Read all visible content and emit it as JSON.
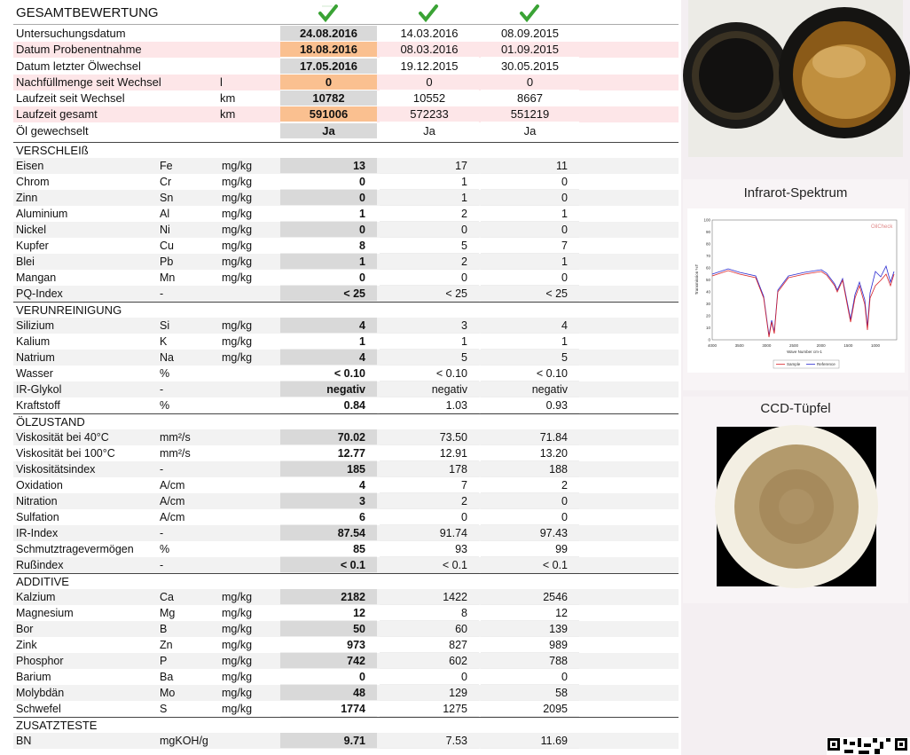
{
  "header": {
    "title": "GESAMTBEWERTUNG"
  },
  "general": {
    "rows": [
      {
        "label": "Untersuchungsdatum",
        "values": [
          "24.08.2016",
          "14.03.2016",
          "08.09.2015"
        ]
      },
      {
        "label": "Datum Probenentnahme",
        "values": [
          "18.08.2016",
          "08.03.2016",
          "01.09.2015"
        ]
      },
      {
        "label": "Datum letzter Ölwechsel",
        "values": [
          "17.05.2016",
          "19.12.2015",
          "30.05.2015"
        ]
      },
      {
        "label": "Nachfüllmenge seit Wechsel",
        "unit": "l",
        "values": [
          "0",
          "0",
          "0"
        ]
      },
      {
        "label": "Laufzeit seit Wechsel",
        "unit": "km",
        "values": [
          "10782",
          "10552",
          "8667"
        ]
      },
      {
        "label": "Laufzeit gesamt",
        "unit": "km",
        "values": [
          "591006",
          "572233",
          "551219"
        ]
      },
      {
        "label": "Öl gewechselt",
        "values": [
          "Ja",
          "Ja",
          "Ja"
        ]
      }
    ]
  },
  "sections": [
    {
      "title": "VERSCHLEIß",
      "rows": [
        {
          "label": "Eisen",
          "symbol": "Fe",
          "unit": "mg/kg",
          "values": [
            "13",
            "17",
            "11"
          ]
        },
        {
          "label": "Chrom",
          "symbol": "Cr",
          "unit": "mg/kg",
          "values": [
            "0",
            "1",
            "0"
          ]
        },
        {
          "label": "Zinn",
          "symbol": "Sn",
          "unit": "mg/kg",
          "values": [
            "0",
            "1",
            "0"
          ]
        },
        {
          "label": "Aluminium",
          "symbol": "Al",
          "unit": "mg/kg",
          "values": [
            "1",
            "2",
            "1"
          ]
        },
        {
          "label": "Nickel",
          "symbol": "Ni",
          "unit": "mg/kg",
          "values": [
            "0",
            "0",
            "0"
          ]
        },
        {
          "label": "Kupfer",
          "symbol": "Cu",
          "unit": "mg/kg",
          "values": [
            "8",
            "5",
            "7"
          ]
        },
        {
          "label": "Blei",
          "symbol": "Pb",
          "unit": "mg/kg",
          "values": [
            "1",
            "2",
            "1"
          ]
        },
        {
          "label": "Mangan",
          "symbol": "Mn",
          "unit": "mg/kg",
          "values": [
            "0",
            "0",
            "0"
          ]
        },
        {
          "label": "PQ-Index",
          "symbol": "-",
          "values": [
            "< 25",
            "< 25",
            "< 25"
          ]
        }
      ]
    },
    {
      "title": "VERUNREINIGUNG",
      "rows": [
        {
          "label": "Silizium",
          "symbol": "Si",
          "unit": "mg/kg",
          "values": [
            "4",
            "3",
            "4"
          ]
        },
        {
          "label": "Kalium",
          "symbol": "K",
          "unit": "mg/kg",
          "values": [
            "1",
            "1",
            "1"
          ]
        },
        {
          "label": "Natrium",
          "symbol": "Na",
          "unit": "mg/kg",
          "values": [
            "4",
            "5",
            "5"
          ]
        },
        {
          "label": "Wasser",
          "symbol": "%",
          "values": [
            "< 0.10",
            "< 0.10",
            "< 0.10"
          ]
        },
        {
          "label": "IR-Glykol",
          "symbol": "-",
          "values": [
            "negativ",
            "negativ",
            "negativ"
          ]
        },
        {
          "label": "Kraftstoff",
          "symbol": "%",
          "values": [
            "0.84",
            "1.03",
            "0.93"
          ]
        }
      ]
    },
    {
      "title": "ÖLZUSTAND",
      "rows": [
        {
          "label": "Viskosität bei 40°C",
          "symbol": "mm²/s",
          "values": [
            "70.02",
            "73.50",
            "71.84"
          ]
        },
        {
          "label": "Viskosität bei 100°C",
          "symbol": "mm²/s",
          "values": [
            "12.77",
            "12.91",
            "13.20"
          ]
        },
        {
          "label": "Viskositätsindex",
          "symbol": "-",
          "values": [
            "185",
            "178",
            "188"
          ]
        },
        {
          "label": "Oxidation",
          "symbol": "A/cm",
          "values": [
            "4",
            "7",
            "2"
          ]
        },
        {
          "label": "Nitration",
          "symbol": "A/cm",
          "values": [
            "3",
            "2",
            "0"
          ]
        },
        {
          "label": "Sulfation",
          "symbol": "A/cm",
          "values": [
            "6",
            "0",
            "0"
          ]
        },
        {
          "label": "IR-Index",
          "symbol": "-",
          "values": [
            "87.54",
            "91.74",
            "97.43"
          ]
        },
        {
          "label": "Schmutztragevermögen",
          "symbol": "%",
          "values": [
            "85",
            "93",
            "99"
          ]
        },
        {
          "label": "Rußindex",
          "symbol": "-",
          "values": [
            "< 0.1",
            "< 0.1",
            "< 0.1"
          ]
        }
      ]
    },
    {
      "title": "ADDITIVE",
      "rows": [
        {
          "label": "Kalzium",
          "symbol": "Ca",
          "unit": "mg/kg",
          "values": [
            "2182",
            "1422",
            "2546"
          ]
        },
        {
          "label": "Magnesium",
          "symbol": "Mg",
          "unit": "mg/kg",
          "values": [
            "12",
            "8",
            "12"
          ]
        },
        {
          "label": "Bor",
          "symbol": "B",
          "unit": "mg/kg",
          "values": [
            "50",
            "60",
            "139"
          ]
        },
        {
          "label": "Zink",
          "symbol": "Zn",
          "unit": "mg/kg",
          "values": [
            "973",
            "827",
            "989"
          ]
        },
        {
          "label": "Phosphor",
          "symbol": "P",
          "unit": "mg/kg",
          "values": [
            "742",
            "602",
            "788"
          ]
        },
        {
          "label": "Barium",
          "symbol": "Ba",
          "unit": "mg/kg",
          "values": [
            "0",
            "0",
            "0"
          ]
        },
        {
          "label": "Molybdän",
          "symbol": "Mo",
          "unit": "mg/kg",
          "values": [
            "48",
            "129",
            "58"
          ]
        },
        {
          "label": "Schwefel",
          "symbol": "S",
          "unit": "mg/kg",
          "values": [
            "1774",
            "1275",
            "2095"
          ]
        }
      ]
    },
    {
      "title": "ZUSATZTESTE",
      "rows": [
        {
          "label": "BN",
          "symbol": "mgKOH/g",
          "values": [
            "9.71",
            "7.53",
            "11.69"
          ]
        }
      ]
    }
  ],
  "ir_spectrum": {
    "title": "Infrarot-Spektrum",
    "watermark": "OilCheck",
    "ylabel": "Transmission %T",
    "xlabel": "Wave Number cm-1",
    "yticks": [
      100,
      90,
      80,
      70,
      60,
      50,
      40,
      30,
      20,
      10,
      0
    ],
    "xticks": [
      4000,
      3500,
      3000,
      2500,
      2000,
      1500,
      1000
    ],
    "legend": [
      "Sample",
      "Reference"
    ]
  },
  "ccd": {
    "title": "CCD-Tüpfel"
  }
}
